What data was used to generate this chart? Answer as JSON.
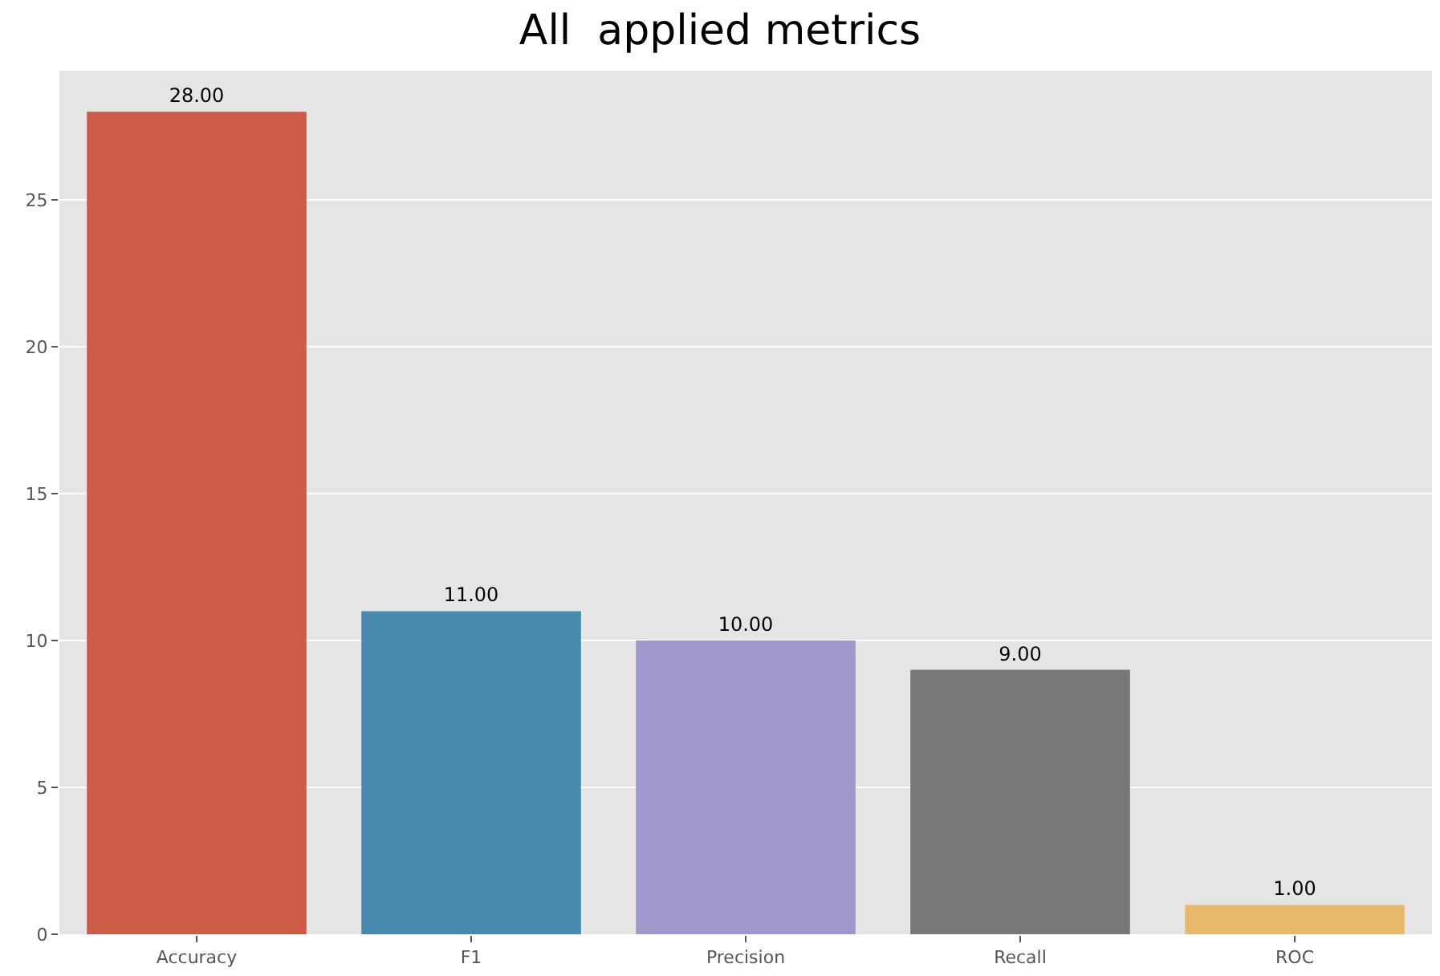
{
  "chart_data": {
    "type": "bar",
    "title": "All  applied metrics",
    "categories": [
      "Accuracy",
      "F1",
      "Precision",
      "Recall",
      "ROC"
    ],
    "values": [
      28,
      11,
      10,
      9,
      1
    ],
    "value_labels": [
      "28.00",
      "11.00",
      "10.00",
      "9.00",
      "1.00"
    ],
    "colors": [
      "#cd5b45",
      "#4688ae",
      "#9e97cc",
      "#777777",
      "#e8b96b"
    ],
    "ylim": [
      0,
      29.4
    ],
    "yticks": [
      0,
      5,
      10,
      15,
      20,
      25
    ],
    "grid": "y"
  }
}
